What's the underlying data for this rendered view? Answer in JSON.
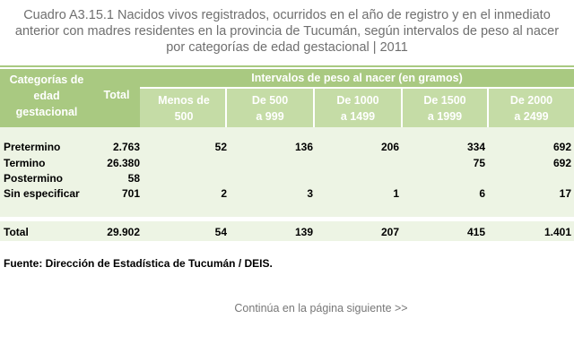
{
  "title": {
    "line1": "Cuadro A3.15.1  Nacidos vivos registrados, ocurridos en el año de registro y en el inmediato",
    "line2": "anterior con madres residentes en la provincia de Tucumán, según intervalos de peso al nacer",
    "line3": "por categorías de edad gestacional |  2011"
  },
  "table": {
    "col_category": [
      "Categorías de",
      "edad",
      "gestacional"
    ],
    "col_total": "Total",
    "group_header": "Intervalos de peso al nacer (en gramos)",
    "intervals": [
      {
        "line1": "Menos de",
        "line2": "500"
      },
      {
        "line1": "De 500",
        "line2": "a 999"
      },
      {
        "line1": "De 1000",
        "line2": "a 1499"
      },
      {
        "line1": "De 1500",
        "line2": "a 1999"
      },
      {
        "line1": "De 2000",
        "line2": "a 2499"
      }
    ],
    "rows": [
      {
        "label": "Pretermino",
        "total": "2.763",
        "values": [
          "52",
          "136",
          "206",
          "334",
          "692"
        ]
      },
      {
        "label": "Termino",
        "total": "26.380",
        "values": [
          "",
          "",
          "",
          "75",
          "692"
        ]
      },
      {
        "label": "Postermino",
        "total": "58",
        "values": [
          "",
          "",
          "",
          "",
          ""
        ]
      },
      {
        "label": "Sin especificar",
        "total": "701",
        "values": [
          "2",
          "3",
          "1",
          "6",
          "17"
        ]
      }
    ],
    "total_row": {
      "label": "Total",
      "total": "29.902",
      "values": [
        "54",
        "139",
        "207",
        "415",
        "1.401"
      ]
    }
  },
  "source": "Fuente: Dirección de Estadística de Tucumán / DEIS.",
  "continue_link": "Continúa en la página siguiente >>",
  "colors": {
    "header": "#a9c981",
    "subheader": "#c5dca6",
    "body": "#edf4e4"
  }
}
